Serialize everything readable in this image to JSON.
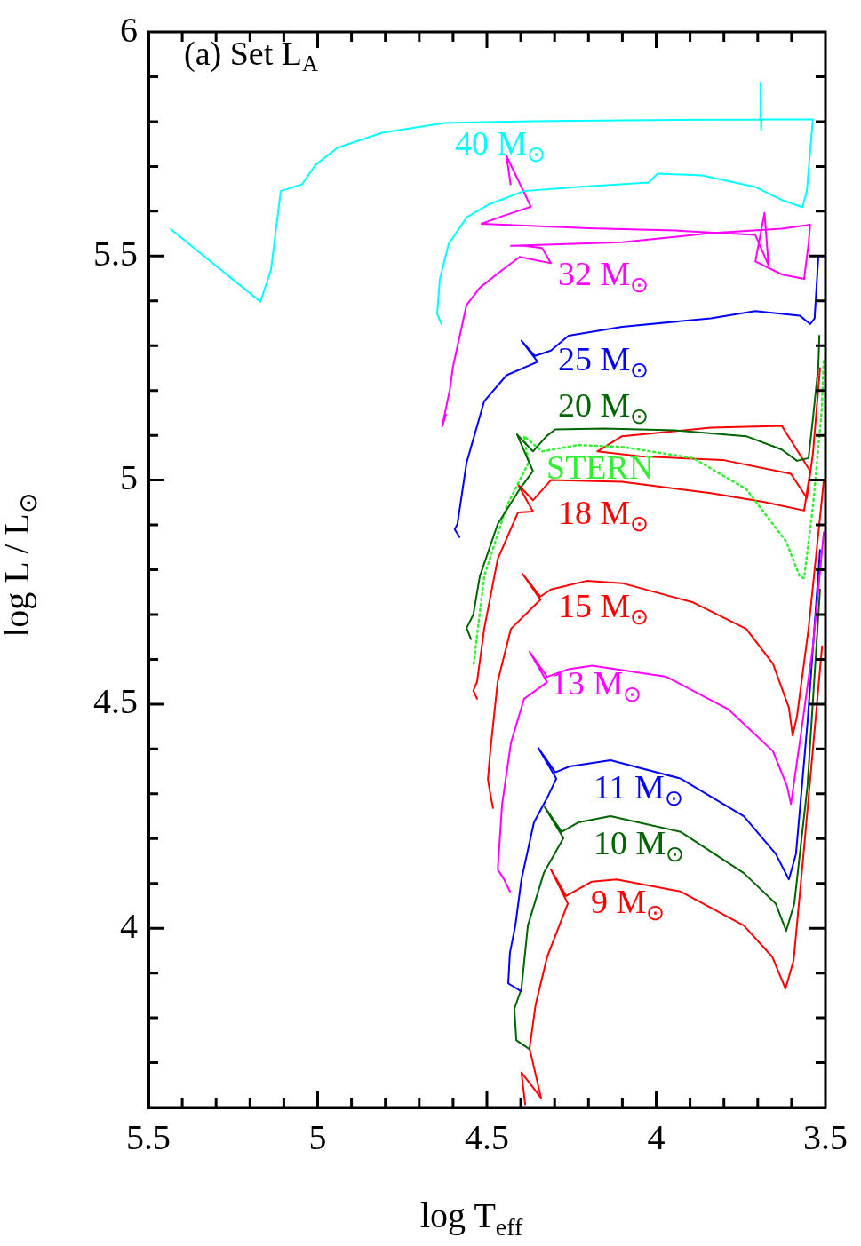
{
  "chart_data": {
    "type": "line",
    "xlabel": "log T$_{eff}$",
    "ylabel": "log L / L$_{⊙}$",
    "xlim": [
      5.5,
      3.5
    ],
    "ylim": [
      3.6,
      6
    ],
    "marker": "none",
    "line_style": "solid",
    "xticks": [
      5.5,
      {
        "value": 5.4,
        "label": null
      },
      {
        "value": 5.3,
        "label": null
      },
      {
        "value": 5.2,
        "label": null
      },
      {
        "value": 5.1,
        "label": null
      },
      5,
      {
        "value": 4.9,
        "label": null
      },
      {
        "value": 4.8,
        "label": null
      },
      {
        "value": 4.7,
        "label": null
      },
      {
        "value": 4.6,
        "label": null
      },
      4.5,
      {
        "value": 4.4,
        "label": null
      },
      {
        "value": 4.3,
        "label": null
      },
      {
        "value": 4.2,
        "label": null
      },
      {
        "value": 4.1,
        "label": null
      },
      4,
      {
        "value": 3.9,
        "label": null
      },
      {
        "value": 3.8,
        "label": null
      },
      {
        "value": 3.7,
        "label": null
      },
      {
        "value": 3.6,
        "label": null
      },
      3.5
    ],
    "yticks": [
      {
        "value": 3.7,
        "label": null
      },
      {
        "value": 3.8,
        "label": null
      },
      {
        "value": 3.9,
        "label": null
      },
      4,
      {
        "value": 4.1,
        "label": null
      },
      {
        "value": 4.2,
        "label": null
      },
      {
        "value": 4.3,
        "label": null
      },
      {
        "value": 4.4,
        "label": null
      },
      4.5,
      {
        "value": 4.6,
        "label": null
      },
      {
        "value": 4.7,
        "label": null
      },
      {
        "value": 4.8,
        "label": null
      },
      {
        "value": 4.9,
        "label": null
      },
      5,
      {
        "value": 5.1,
        "label": null
      },
      {
        "value": 5.2,
        "label": null
      },
      {
        "value": 5.3,
        "label": null
      },
      {
        "value": 5.4,
        "label": null
      },
      5.5,
      {
        "value": 5.6,
        "label": null
      },
      {
        "value": 5.7,
        "label": null
      },
      {
        "value": 5.8,
        "label": null
      },
      {
        "value": 5.9,
        "label": null
      },
      6
    ],
    "series": [
      {
        "color": "#00ffff",
        "x": [
          4.634,
          4.647,
          4.639,
          4.613,
          4.56,
          4.495,
          4.39,
          4.232,
          4.022,
          3.996,
          3.865,
          3.707,
          3.629,
          3.568,
          3.555,
          3.542,
          3.537,
          3.694,
          3.692,
          3.69,
          3.688,
          4.101,
          4.364,
          4.626,
          4.81,
          4.941,
          5.007,
          5.046,
          5.109,
          5.138,
          5.169,
          5.434
        ],
        "values": [
          5.348,
          5.371,
          5.449,
          5.527,
          5.586,
          5.615,
          5.645,
          5.654,
          5.664,
          5.684,
          5.68,
          5.654,
          5.625,
          5.609,
          5.645,
          5.762,
          5.805,
          5.805,
          5.887,
          5.78,
          5.805,
          5.803,
          5.801,
          5.797,
          5.775,
          5.742,
          5.703,
          5.66,
          5.645,
          5.469,
          5.398,
          5.56
        ]
      },
      {
        "color": "#ff00ff",
        "x": [
          4.621,
          4.632,
          4.61,
          4.6,
          4.56,
          4.52,
          4.47,
          4.403,
          4.311,
          4.337,
          4.39,
          4.429,
          4.101,
          3.839,
          3.629,
          3.545,
          3.55,
          3.563,
          3.629,
          3.707,
          3.68,
          3.668,
          3.707,
          3.943,
          4.2,
          4.516,
          4.45,
          4.41,
          4.37,
          4.442,
          4.43
        ],
        "values": [
          5.146,
          5.12,
          5.2,
          5.254,
          5.391,
          5.43,
          5.46,
          5.498,
          5.484,
          5.518,
          5.523,
          5.523,
          5.531,
          5.551,
          5.561,
          5.57,
          5.527,
          5.449,
          5.459,
          5.488,
          5.596,
          5.479,
          5.547,
          5.557,
          5.562,
          5.572,
          5.59,
          5.6,
          5.61,
          5.723,
          5.66
        ]
      },
      {
        "color": "#0000ff",
        "x": [
          4.581,
          4.595,
          4.587,
          4.56,
          4.508,
          4.442,
          4.35,
          4.398,
          4.358,
          4.311,
          4.259,
          4.101,
          3.839,
          3.707,
          3.576,
          3.545,
          3.532,
          3.521
        ],
        "values": [
          4.873,
          4.89,
          4.902,
          5.039,
          5.176,
          5.234,
          5.264,
          5.311,
          5.277,
          5.289,
          5.322,
          5.342,
          5.361,
          5.377,
          5.367,
          5.348,
          5.361,
          5.498
        ]
      },
      {
        "color": "#006400",
        "x": [
          4.547,
          4.56,
          4.54,
          4.521,
          4.468,
          4.403,
          4.364,
          4.411,
          4.364,
          4.324,
          4.298,
          4.154,
          3.944,
          3.734,
          3.629,
          3.584,
          3.55,
          3.537,
          3.521,
          3.518
        ],
        "values": [
          4.645,
          4.67,
          4.7,
          4.785,
          4.902,
          4.98,
          5.02,
          5.102,
          5.064,
          5.098,
          5.113,
          5.115,
          5.111,
          5.098,
          5.068,
          5.043,
          5.049,
          5.137,
          5.254,
          5.322
        ]
      },
      {
        "color": "#33ee33",
        "line_style": "dotted",
        "x": [
          4.539,
          4.508,
          4.442,
          4.377,
          4.39,
          4.337,
          4.232,
          4.101,
          3.891,
          3.734,
          3.616,
          3.576,
          3.563,
          3.537,
          3.511,
          3.505
        ],
        "values": [
          4.59,
          4.785,
          4.941,
          5.039,
          5.098,
          5.064,
          5.078,
          5.074,
          5.049,
          4.98,
          4.863,
          4.785,
          4.781,
          4.941,
          5.156,
          5.273
        ]
      },
      {
        "color": "#ff0000",
        "x": [
          4.529,
          4.54,
          4.529,
          4.508,
          4.468,
          4.408,
          4.364,
          4.408,
          4.364,
          4.311,
          4.101,
          3.839,
          3.681,
          3.563,
          3.545,
          3.629,
          3.839,
          4.101,
          4.174,
          4.049,
          3.804,
          3.602,
          3.555,
          3.537,
          3.516
        ],
        "values": [
          4.512,
          4.53,
          4.55,
          4.668,
          4.824,
          4.928,
          4.93,
          4.99,
          4.955,
          5.0,
          4.996,
          4.971,
          4.951,
          4.932,
          5.02,
          5.121,
          5.117,
          5.098,
          5.064,
          5.053,
          5.045,
          5.014,
          4.96,
          5.059,
          5.25
        ]
      },
      {
        "color": "#ff0000",
        "x": [
          4.482,
          4.49,
          4.497,
          4.49,
          4.468,
          4.429,
          4.342,
          4.395,
          4.342,
          4.311,
          4.206,
          4.101,
          3.891,
          3.734,
          3.655,
          3.608,
          3.597,
          3.584,
          3.55,
          3.51,
          3.505
        ],
        "values": [
          4.268,
          4.3,
          4.332,
          4.395,
          4.551,
          4.668,
          4.733,
          4.791,
          4.74,
          4.756,
          4.775,
          4.77,
          4.727,
          4.668,
          4.59,
          4.492,
          4.43,
          4.473,
          4.668,
          4.961,
          5.0
        ]
      },
      {
        "color": "#ff00ff",
        "x": [
          4.432,
          4.45,
          4.468,
          4.455,
          4.429,
          4.39,
          4.322,
          4.374,
          4.322,
          4.259,
          4.189,
          3.97,
          3.786,
          3.655,
          3.613,
          3.602,
          3.576,
          3.537,
          3.51,
          3.505
        ],
        "values": [
          4.082,
          4.11,
          4.131,
          4.277,
          4.414,
          4.512,
          4.549,
          4.617,
          4.561,
          4.578,
          4.586,
          4.561,
          4.488,
          4.395,
          4.316,
          4.277,
          4.414,
          4.629,
          4.844,
          4.883
        ]
      },
      {
        "color": "#0000ff",
        "x": [
          4.398,
          4.437,
          4.432,
          4.416,
          4.398,
          4.361,
          4.322,
          4.295,
          4.348,
          4.298,
          4.256,
          4.135,
          3.928,
          3.741,
          3.647,
          3.608,
          3.587,
          3.553,
          3.516
        ],
        "values": [
          3.859,
          3.877,
          3.945,
          4.006,
          4.109,
          4.236,
          4.291,
          4.334,
          4.402,
          4.348,
          4.361,
          4.375,
          4.334,
          4.25,
          4.166,
          4.109,
          4.166,
          4.459,
          4.844
        ]
      },
      {
        "color": "#006400",
        "x": [
          4.374,
          4.413,
          4.419,
          4.398,
          4.379,
          4.332,
          4.274,
          4.329,
          4.279,
          4.23,
          4.135,
          3.928,
          3.741,
          3.647,
          3.616,
          3.592,
          3.553,
          3.516
        ],
        "values": [
          3.73,
          3.75,
          3.82,
          3.865,
          4.006,
          4.123,
          4.201,
          4.27,
          4.215,
          4.236,
          4.25,
          4.215,
          4.123,
          4.055,
          3.994,
          4.055,
          4.318,
          4.756
        ]
      },
      {
        "color": "#ff0000",
        "x": [
          4.387,
          4.398,
          4.34,
          4.374,
          4.356,
          4.322,
          4.261,
          4.311,
          4.266,
          4.19,
          4.117,
          3.928,
          3.741,
          3.657,
          3.618,
          3.594,
          3.563,
          3.51
        ],
        "values": [
          3.607,
          3.678,
          3.621,
          3.732,
          3.83,
          3.936,
          4.055,
          4.131,
          4.072,
          4.104,
          4.109,
          4.082,
          4.006,
          3.936,
          3.865,
          3.928,
          4.18,
          4.629
        ]
      }
    ],
    "annotations": [
      "(a) Set L$_{A}$",
      "40 M$_{⊙}$",
      "32 M$_{⊙}$",
      "25 M$_{⊙}$",
      "20 M$_{⊙}$",
      "STERN",
      "18 M$_{⊙}$",
      "15 M$_{⊙}$",
      "13 M$_{⊙}$",
      "11 M$_{⊙}$",
      "10 M$_{⊙}$",
      "9 M$_{⊙}$"
    ]
  }
}
